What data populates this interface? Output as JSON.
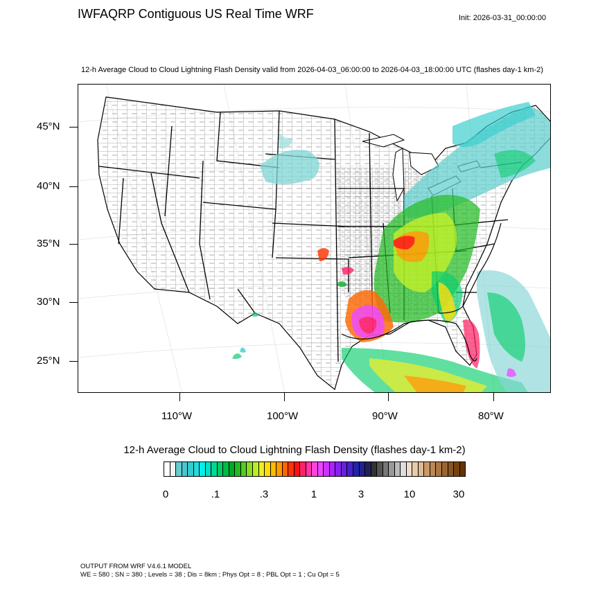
{
  "header": {
    "title": "IWFAQRP Contiguous US Real Time WRF",
    "init": "Init: 2026-03-31_00:00:00",
    "subtitle": "12-h Average Cloud to Cloud Lightning Flash Density valid from 2026-04-03_06:00:00 to 2026-04-03_18:00:00 UTC   (flashes day-1 km-2)"
  },
  "map": {
    "lat_labels": [
      "45°N",
      "40°N",
      "35°N",
      "30°N",
      "25°N"
    ],
    "lon_labels": [
      "110°W",
      "100°W",
      "90°W",
      "80°W"
    ],
    "background": "#ffffff",
    "border_color": "#000000"
  },
  "colorbar": {
    "title": "12-h Average Cloud to Cloud Lightning Flash Density  (flashes day-1 km-2)",
    "labels": [
      "0",
      ".1",
      ".3",
      "1",
      "3",
      "10",
      "30"
    ],
    "colors": [
      "#ffffff",
      "#f2f2f2",
      "#66cccc",
      "#4dc3d3",
      "#33cccc",
      "#22dddd",
      "#00eeee",
      "#00e0c0",
      "#00d890",
      "#00cc66",
      "#00bb44",
      "#00aa22",
      "#22bb22",
      "#55cc22",
      "#88dd22",
      "#bbee22",
      "#eeee22",
      "#ffdd00",
      "#ffbb00",
      "#ff9900",
      "#ff6600",
      "#ff3300",
      "#ff1111",
      "#ff2266",
      "#ff33aa",
      "#ff44dd",
      "#ee44ff",
      "#cc33ff",
      "#aa22ff",
      "#8822ee",
      "#6622dd",
      "#4422cc",
      "#2222aa",
      "#222288",
      "#222255",
      "#333333",
      "#555555",
      "#777777",
      "#999999",
      "#bbbbbb",
      "#dddddd",
      "#eeddcc",
      "#e6ccaa",
      "#ddbb99",
      "#cc9966",
      "#bb8855",
      "#aa7744",
      "#996633",
      "#885522",
      "#774411",
      "#663300"
    ]
  },
  "footer": {
    "line1": "OUTPUT FROM WRF V4.6.1 MODEL",
    "line2": "WE = 580 ; SN = 380 ; Levels = 38 ; Dis = 8km ; Phys Opt = 8 ; PBL Opt = 1 ; Cu Opt = 5"
  }
}
